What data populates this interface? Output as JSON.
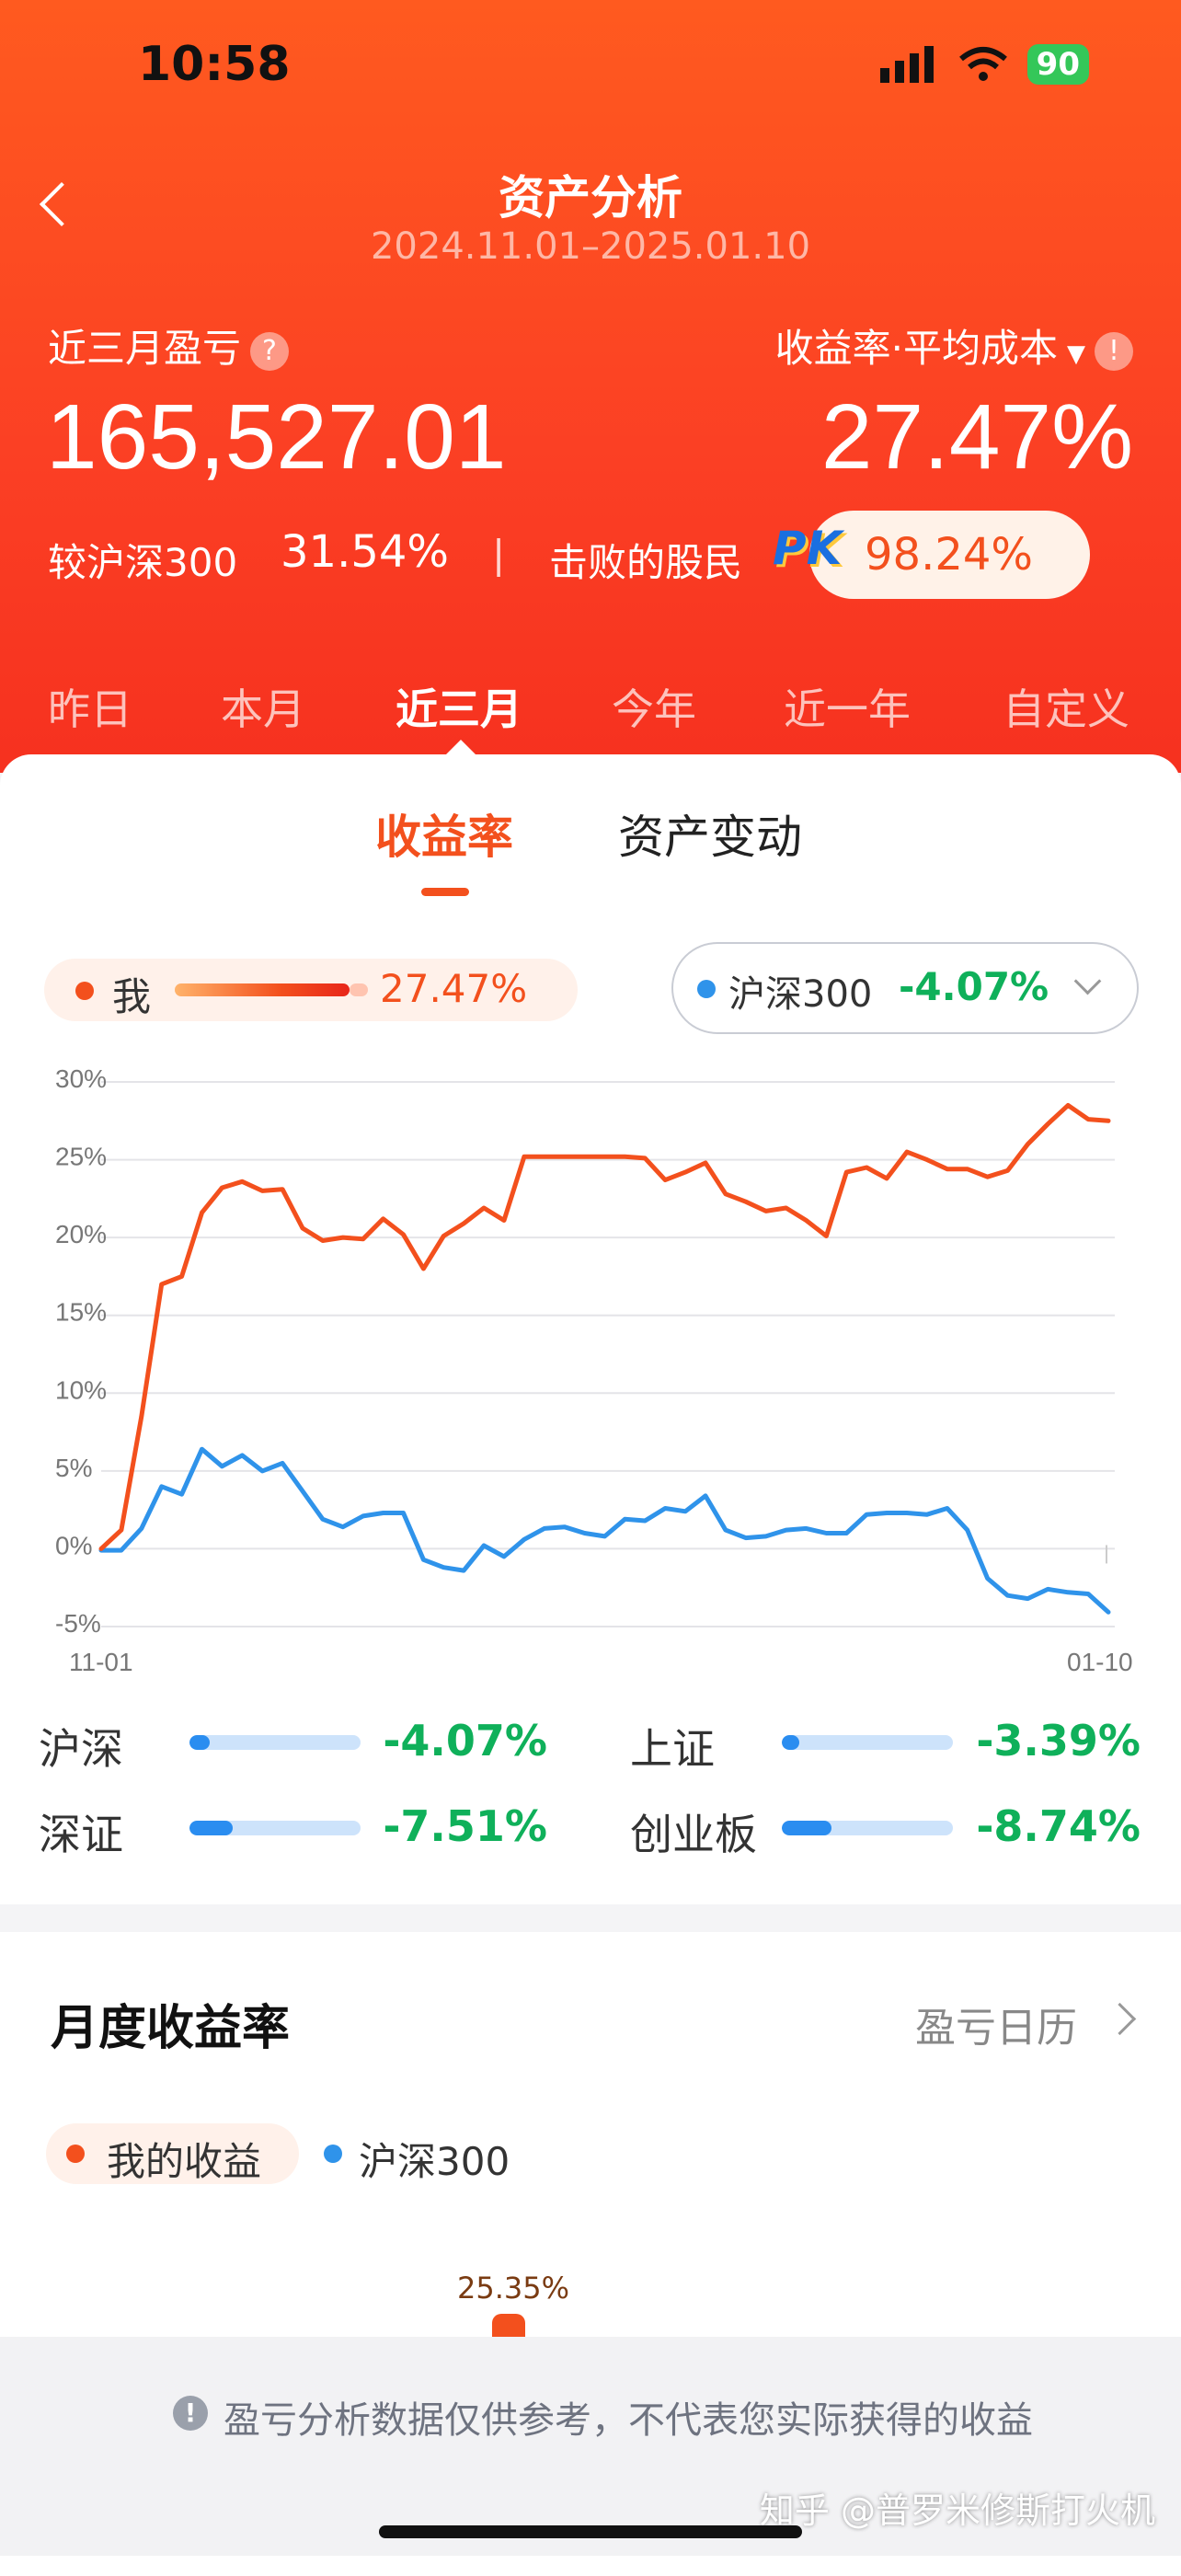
{
  "status": {
    "time": "10:58",
    "battery": "90"
  },
  "header": {
    "title": "资产分析",
    "date_range": "2024.11.01–2025.01.10",
    "pnl_label": "近三月盈亏",
    "pnl_value": "165,527.01",
    "rate_label": "收益率·平均成本",
    "rate_value": "27.47%",
    "compare_label": "较沪深300",
    "compare_value": "31.54%",
    "divider": "|",
    "beat_label": "击败的股民",
    "pk_badge": "PK",
    "beat_value": "98.24%"
  },
  "tabs": [
    "昨日",
    "本月",
    "近三月",
    "今年",
    "近一年",
    "自定义"
  ],
  "active_tab": "近三月",
  "segments": {
    "rate": "收益率",
    "change": "资产变动"
  },
  "legend": {
    "me_label": "我",
    "me_value": "27.47%",
    "bench_label": "沪深300",
    "bench_value": "-4.07%",
    "me_color": "#f3501d",
    "bench_color": "#2f93ea"
  },
  "chart_data": {
    "type": "line",
    "yticks": [
      "30%",
      "25%",
      "20%",
      "15%",
      "10%",
      "5%",
      "0%",
      "-5%"
    ],
    "ylim": [
      -5,
      30
    ],
    "xlabels": [
      "11-01",
      "01-10"
    ],
    "series": [
      {
        "name": "我",
        "color": "#f3501d",
        "values": [
          0.0,
          1.2,
          8.5,
          17.0,
          17.5,
          21.6,
          23.2,
          23.6,
          23.0,
          23.1,
          20.6,
          19.8,
          20.0,
          19.9,
          21.2,
          20.2,
          18.0,
          20.1,
          20.9,
          21.9,
          21.1,
          25.2,
          25.2,
          25.2,
          25.2,
          25.2,
          25.2,
          25.1,
          23.7,
          24.2,
          24.8,
          22.8,
          22.3,
          21.7,
          21.9,
          21.1,
          20.1,
          24.2,
          24.5,
          23.8,
          25.5,
          25.0,
          24.4,
          24.4,
          23.9,
          24.3,
          26.0,
          27.3,
          28.5,
          27.6,
          27.5
        ]
      },
      {
        "name": "沪深300",
        "color": "#2f93ea",
        "values": [
          -0.1,
          -0.1,
          1.3,
          4.0,
          3.5,
          6.4,
          5.3,
          6.0,
          5.0,
          5.5,
          3.7,
          1.9,
          1.4,
          2.1,
          2.3,
          2.3,
          -0.7,
          -1.2,
          -1.4,
          0.2,
          -0.5,
          0.6,
          1.3,
          1.4,
          1.0,
          0.8,
          1.9,
          1.8,
          2.6,
          2.4,
          3.4,
          1.2,
          0.7,
          0.8,
          1.2,
          1.3,
          1.0,
          1.0,
          2.2,
          2.3,
          2.3,
          2.2,
          2.6,
          1.2,
          -1.9,
          -3.0,
          -3.2,
          -2.6,
          -2.8,
          -2.9,
          -4.07
        ]
      }
    ]
  },
  "indices": [
    {
      "name": "沪深",
      "value": "-4.07%",
      "fill": 0.12
    },
    {
      "name": "上证",
      "value": "-3.39%",
      "fill": 0.1
    },
    {
      "name": "深证",
      "value": "-7.51%",
      "fill": 0.25
    },
    {
      "name": "创业板",
      "value": "-8.74%",
      "fill": 0.29
    }
  ],
  "monthly": {
    "title": "月度收益率",
    "calendar_link": "盈亏日历",
    "legend_me": "我的收益",
    "legend_bench": "沪深300",
    "bar_label": "25.35%"
  },
  "footer": {
    "disclaimer": "盈亏分析数据仅供参考，不代表您实际获得的收益",
    "watermark": "知乎 @普罗米修斯打火机"
  }
}
